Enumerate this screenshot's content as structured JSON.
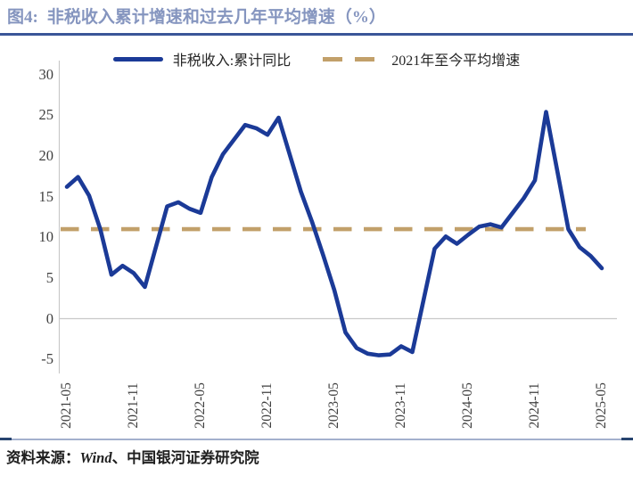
{
  "header": {
    "title_prefix": "图4:",
    "title_main": "非税收入累计增速和过去几年平均增速（%）"
  },
  "legend": {
    "items": [
      {
        "label": "非税收入:累计同比",
        "style": "solid"
      },
      {
        "label": "2021年至今平均增速",
        "style": "dashed"
      }
    ]
  },
  "footer": {
    "prefix": "资料来源：",
    "vendor": "Wind",
    "suffix": "、中国银河证券研究院"
  },
  "colors": {
    "series_line": "#1B3A97",
    "average_line": "#C2A06A",
    "title_text": "#8595BF",
    "title_rule": "#3A5598",
    "axis_gray": "#C9C9C9",
    "tick_text": "#3F3F3F"
  },
  "chart_data": {
    "type": "line",
    "title": "非税收入累计增速和过去几年平均增速（%）",
    "xlabel": "",
    "ylabel": "%",
    "ylim": [
      -5,
      30
    ],
    "grid": "zero-line-only",
    "legend_position": "top-center",
    "yticks": [
      30,
      25,
      20,
      15,
      10,
      5,
      0,
      -5
    ],
    "xticks": [
      "2021-05",
      "2021-11",
      "2022-05",
      "2022-11",
      "2023-05",
      "2023-11",
      "2024-05",
      "2024-11",
      "2025-05"
    ],
    "x": [
      "2021-05",
      "2021-06",
      "2021-07",
      "2021-08",
      "2021-09",
      "2021-10",
      "2021-11",
      "2021-12",
      "2022-01",
      "2022-02",
      "2022-03",
      "2022-04",
      "2022-05",
      "2022-06",
      "2022-07",
      "2022-08",
      "2022-09",
      "2022-10",
      "2022-11",
      "2022-12",
      "2023-01",
      "2023-02",
      "2023-03",
      "2023-04",
      "2023-05",
      "2023-06",
      "2023-07",
      "2023-08",
      "2023-09",
      "2023-10",
      "2023-11",
      "2023-12",
      "2024-01",
      "2024-02",
      "2024-03",
      "2024-04",
      "2024-05",
      "2024-06",
      "2024-07",
      "2024-08",
      "2024-09",
      "2024-10",
      "2024-11",
      "2024-12",
      "2025-01",
      "2025-02",
      "2025-03",
      "2025-04",
      "2025-05"
    ],
    "series": [
      {
        "name": "非税收入:累计同比",
        "values": [
          16.2,
          17.4,
          15.1,
          11.0,
          5.4,
          6.5,
          5.6,
          3.9,
          null,
          13.8,
          14.3,
          13.5,
          13.0,
          17.4,
          20.2,
          22.0,
          23.8,
          23.4,
          22.6,
          24.7,
          null,
          15.6,
          11.9,
          7.8,
          3.5,
          -1.7,
          -3.6,
          -4.3,
          -4.5,
          -4.4,
          -3.4,
          -4.1,
          null,
          8.6,
          10.1,
          9.2,
          10.3,
          11.3,
          11.6,
          11.2,
          13.0,
          14.8,
          17.0,
          25.4,
          null,
          11.0,
          8.8,
          7.7,
          6.2
        ]
      },
      {
        "name": "2021年至今平均增速",
        "constant_value": 11.0
      }
    ]
  }
}
